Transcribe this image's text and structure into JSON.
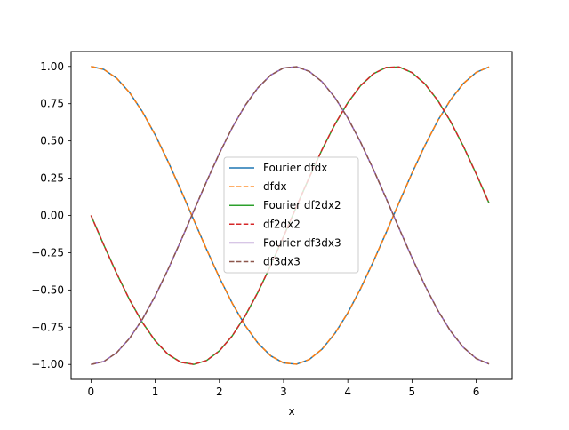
{
  "chart_data": {
    "type": "line",
    "xlabel": "x",
    "ylabel": "",
    "title": "",
    "xlim": [
      -0.31,
      6.56
    ],
    "ylim": [
      -1.1,
      1.1
    ],
    "xticks": [
      0,
      1,
      2,
      3,
      4,
      5,
      6
    ],
    "xtick_labels": [
      "0",
      "1",
      "2",
      "3",
      "4",
      "5",
      "6"
    ],
    "yticks": [
      1.0,
      0.75,
      0.5,
      0.25,
      0.0,
      -0.25,
      -0.5,
      -0.75,
      -1.0
    ],
    "ytick_labels": [
      "1.00",
      "0.75",
      "0.50",
      "0.25",
      "0.00",
      "−0.25",
      "−0.50",
      "−0.75",
      "−1.00"
    ],
    "grid": false,
    "legend_position": "center",
    "x_range": [
      0,
      6.2
    ],
    "x_samples": 32,
    "series": [
      {
        "name": "Fourier dfdx",
        "function": "cos(x)",
        "color": "#1f77b4",
        "style": "solid"
      },
      {
        "name": "dfdx",
        "function": "cos(x)",
        "color": "#ff7f0e",
        "style": "dashed"
      },
      {
        "name": "Fourier df2dx2",
        "function": "-sin(x)",
        "color": "#2ca02c",
        "style": "solid"
      },
      {
        "name": "df2dx2",
        "function": "-sin(x)",
        "color": "#d62728",
        "style": "dashed"
      },
      {
        "name": "Fourier df3dx3",
        "function": "-cos(x)",
        "color": "#9467bd",
        "style": "solid"
      },
      {
        "name": "df3dx3",
        "function": "-cos(x)",
        "color": "#8c564b",
        "style": "dashed"
      }
    ]
  }
}
